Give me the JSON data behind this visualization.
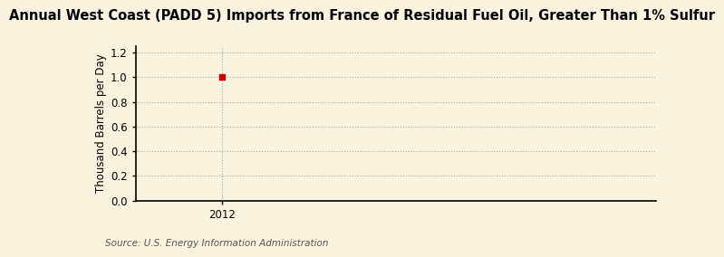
{
  "title": "Annual West Coast (PADD 5) Imports from France of Residual Fuel Oil, Greater Than 1% Sulfur",
  "ylabel": "Thousand Barrels per Day",
  "source": "Source: U.S. Energy Information Administration",
  "background_color": "#faf3e0",
  "data_x": [
    2012
  ],
  "data_y": [
    1.0
  ],
  "point_color": "#cc0000",
  "xlim": [
    2011.7,
    2013.5
  ],
  "ylim": [
    0.0,
    1.25
  ],
  "yticks": [
    0.0,
    0.2,
    0.4,
    0.6,
    0.8,
    1.0,
    1.2
  ],
  "xticks": [
    2012
  ],
  "grid_color": "#aaaaaa",
  "title_fontsize": 10.5,
  "label_fontsize": 8.5,
  "tick_fontsize": 8.5,
  "source_fontsize": 7.5
}
